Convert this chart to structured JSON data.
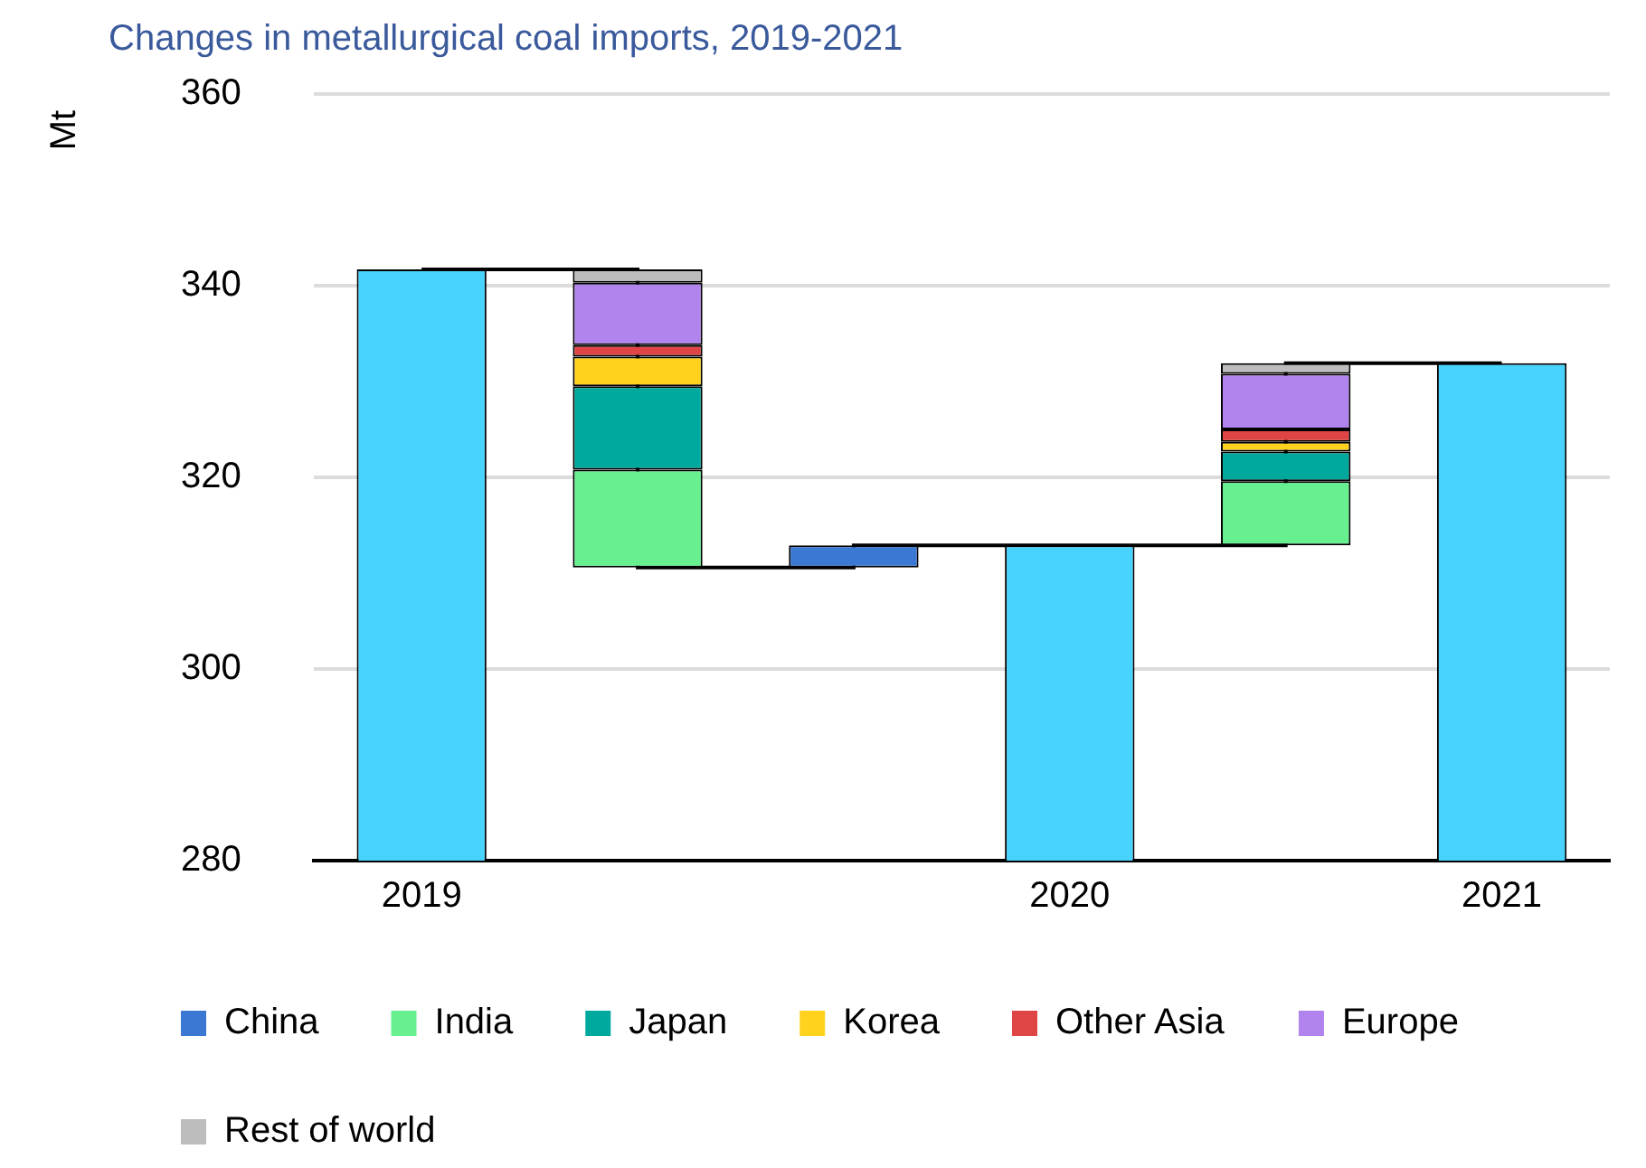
{
  "chart_data": {
    "type": "bar",
    "title": "Changes in metallurgical coal imports, 2019-2021",
    "ylabel": "Mt",
    "categories": [
      "2019",
      null,
      null,
      "2020",
      null,
      "2021"
    ],
    "ylim": [
      280,
      360
    ],
    "yticks": [
      280,
      300,
      320,
      340,
      360
    ],
    "grid": "y",
    "legend": "bottom",
    "series": [
      {
        "color": "#48d3ff",
        "values": [
          341.7,
          null,
          null,
          312.9,
          null,
          331.9
        ]
      },
      {
        "name": "China",
        "color": "#3a78d4",
        "values": [
          null,
          null,
          2.3,
          null,
          null,
          null
        ],
        "base": [
          null,
          null,
          310.6,
          null,
          null,
          null
        ]
      },
      {
        "name": "India",
        "color": "#66f08f",
        "values": [
          null,
          -10.2,
          null,
          null,
          6.7,
          null
        ],
        "base": [
          null,
          320.8,
          null,
          null,
          312.9,
          null
        ]
      },
      {
        "name": "Japan",
        "color": "#00a99d",
        "values": [
          null,
          -8.7,
          null,
          null,
          3.1,
          null
        ],
        "base": [
          null,
          329.5,
          null,
          null,
          319.6,
          null
        ]
      },
      {
        "name": "Korea",
        "color": "#ffd21e",
        "values": [
          null,
          -3.1,
          null,
          null,
          1.0,
          null
        ],
        "base": [
          null,
          332.6,
          null,
          null,
          322.7,
          null
        ]
      },
      {
        "name": "Other Asia",
        "color": "#e04545",
        "values": [
          null,
          -1.2,
          null,
          null,
          1.3,
          null
        ],
        "base": [
          null,
          333.8,
          null,
          null,
          323.7,
          null
        ]
      },
      {
        "name": "Europe",
        "color": "#b084ec",
        "values": [
          null,
          -6.5,
          null,
          null,
          5.8,
          null
        ],
        "base": [
          null,
          340.3,
          null,
          null,
          325.0,
          null
        ]
      },
      {
        "name": "Rest of world",
        "color": "#bdbdbd",
        "values": [
          null,
          -1.4,
          null,
          null,
          1.1,
          null
        ],
        "base": [
          null,
          341.7,
          null,
          null,
          330.8,
          null
        ]
      },
      {
        "type": "step",
        "color": "#000000",
        "values": [
          341.7,
          310.6,
          312.9,
          312.9,
          331.9,
          331.9
        ]
      }
    ]
  }
}
